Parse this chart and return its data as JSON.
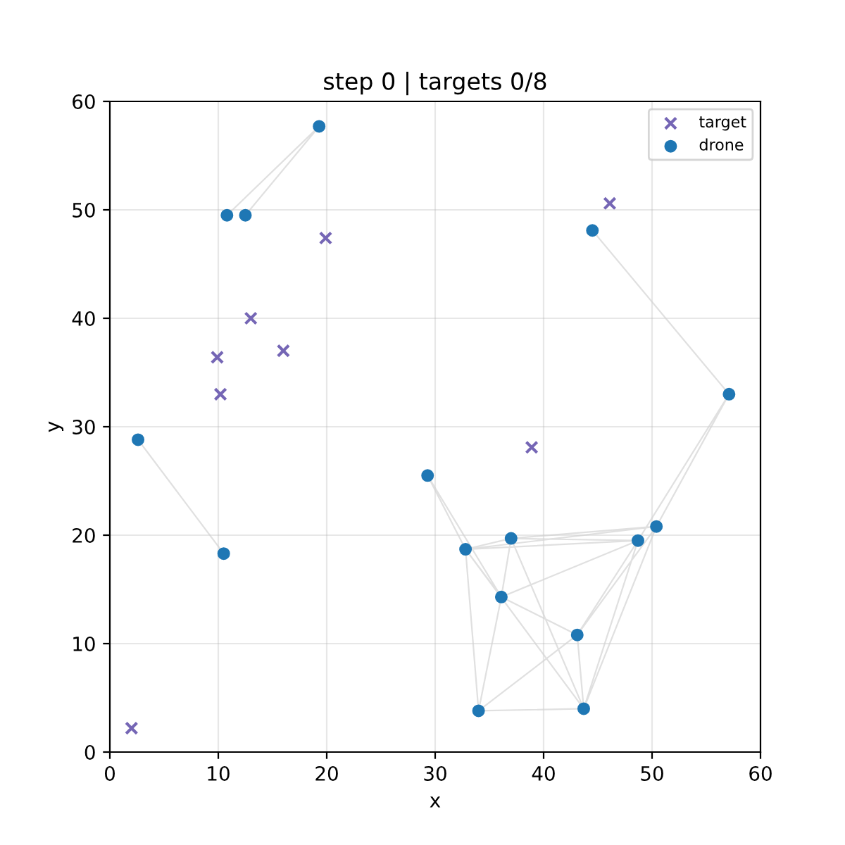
{
  "chart_data": {
    "type": "scatter",
    "title": "step 0 | targets 0/8",
    "xlabel": "x",
    "ylabel": "y",
    "xlim": [
      0,
      60
    ],
    "ylim": [
      0,
      60
    ],
    "xticks": [
      0,
      10,
      20,
      30,
      40,
      50,
      60
    ],
    "yticks": [
      0,
      10,
      20,
      30,
      40,
      50,
      60
    ],
    "grid": true,
    "legend": "top right",
    "series": [
      {
        "type": "line",
        "color": "#d3d3d3",
        "marker": "none",
        "line_style": "solid",
        "x": [
          10.8,
          19.3,
          null,
          12.5,
          19.3,
          null,
          2.6,
          10.5,
          null,
          44.5,
          57.1,
          null,
          57.1,
          50.4,
          null,
          57.1,
          48.7,
          null,
          29.3,
          32.8,
          null,
          29.3,
          36.1,
          null,
          32.8,
          37.0,
          null,
          32.8,
          48.7,
          null,
          32.8,
          50.4,
          null,
          32.8,
          34.0,
          null,
          32.8,
          36.1,
          null,
          32.8,
          43.7,
          null,
          37.0,
          48.7,
          null,
          37.0,
          50.4,
          null,
          37.0,
          36.1,
          null,
          37.0,
          43.7,
          null,
          36.1,
          48.7,
          null,
          36.1,
          43.1,
          null,
          36.1,
          34.0,
          null,
          48.7,
          43.1,
          null,
          48.7,
          43.7,
          null,
          50.4,
          43.1,
          null,
          50.4,
          43.7,
          null,
          43.1,
          34.0,
          null,
          43.1,
          43.7,
          null,
          34.0,
          43.7
        ],
        "values": [
          49.5,
          57.7,
          null,
          49.5,
          57.7,
          null,
          28.8,
          18.3,
          null,
          48.1,
          33.0,
          null,
          33.0,
          20.8,
          null,
          33.0,
          19.5,
          null,
          25.5,
          18.7,
          null,
          25.5,
          14.3,
          null,
          18.7,
          19.7,
          null,
          18.7,
          19.5,
          null,
          18.7,
          20.8,
          null,
          18.7,
          3.8,
          null,
          18.7,
          14.3,
          null,
          18.7,
          4.0,
          null,
          19.7,
          19.5,
          null,
          19.7,
          20.8,
          null,
          19.7,
          14.3,
          null,
          19.7,
          4.0,
          null,
          14.3,
          19.5,
          null,
          14.3,
          10.8,
          null,
          14.3,
          3.8,
          null,
          19.5,
          10.8,
          null,
          19.5,
          4.0,
          null,
          20.8,
          10.8,
          null,
          20.8,
          4.0,
          null,
          10.8,
          3.8,
          null,
          10.8,
          4.0,
          null,
          3.8,
          4.0
        ]
      },
      {
        "name": "target",
        "color": "#7566b5",
        "marker": "cross",
        "x": [
          9.9,
          10.2,
          13.0,
          16.0,
          19.9,
          46.1,
          38.9,
          2.0
        ],
        "values": [
          36.4,
          33.0,
          40.0,
          37.0,
          47.4,
          50.6,
          28.1,
          2.2
        ]
      },
      {
        "name": "drone",
        "color": "#1f77b4",
        "marker": "circle",
        "x": [
          10.8,
          12.5,
          19.3,
          2.6,
          10.5,
          44.5,
          57.1,
          29.3,
          32.8,
          37.0,
          36.1,
          48.7,
          50.4,
          43.1,
          34.0,
          43.7
        ],
        "values": [
          49.5,
          49.5,
          57.7,
          28.8,
          18.3,
          48.1,
          33.0,
          25.5,
          18.7,
          19.7,
          14.3,
          19.5,
          20.8,
          10.8,
          3.8,
          4.0
        ]
      }
    ]
  }
}
